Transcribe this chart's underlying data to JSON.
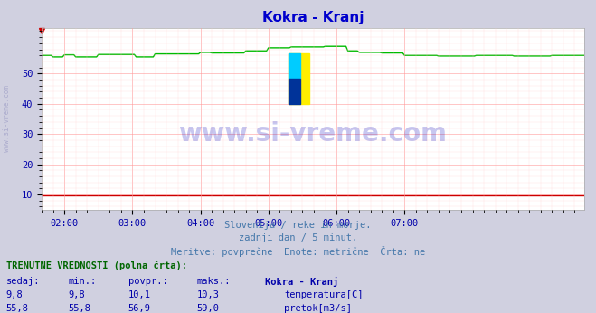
{
  "title": "Kokra - Kranj",
  "title_color": "#0000cc",
  "bg_color": "#d0d0e0",
  "plot_bg_color": "#ffffff",
  "grid_major_color": "#ff9999",
  "grid_minor_color": "#ffcccc",
  "tick_color": "#0000aa",
  "watermark_text": "www.si-vreme.com",
  "watermark_color": "#0000bb",
  "side_watermark": "www.si-vreme.com",
  "subtitle1": "Slovenija / reke in morje.",
  "subtitle2": "zadnji dan / 5 minut.",
  "subtitle3": "Meritve: povprečne  Enote: metrične  Črta: ne",
  "subtitle_color": "#4477aa",
  "table_header": "TRENUTNE VREDNOSTI (polna črta):",
  "table_header_color": "#006600",
  "col_headers": [
    "sedaj:",
    "min.:",
    "povpr.:",
    "maks.:",
    "Kokra - Kranj"
  ],
  "row1_values": [
    "9,8",
    "9,8",
    "10,1",
    "10,3"
  ],
  "row1_label": "temperatura[C]",
  "row1_color": "#dd0000",
  "row2_values": [
    "55,8",
    "55,8",
    "56,9",
    "59,0"
  ],
  "row2_label": "pretok[m3/s]",
  "row2_color": "#00bb00",
  "xmin": 0,
  "xmax": 287,
  "ymin": 5,
  "ymax": 65,
  "yticks": [
    10,
    20,
    30,
    40,
    50
  ],
  "xtick_labels": [
    "02:00",
    "03:00",
    "04:00",
    "05:00",
    "06:00",
    "07:00"
  ],
  "xtick_positions": [
    12,
    48,
    84,
    120,
    156,
    192
  ],
  "temp_color": "#cc0000",
  "flow_color": "#00bb00",
  "arrow_color": "#cc0000"
}
